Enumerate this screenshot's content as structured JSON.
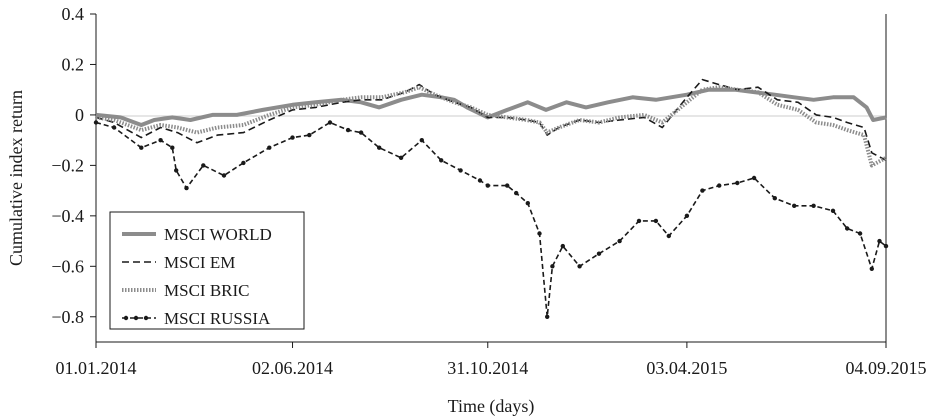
{
  "chart_data": {
    "type": "line",
    "xlabel": "Time (days)",
    "ylabel": "Cumulative index return",
    "ylim": [
      -0.9,
      0.4
    ],
    "xlim": [
      "2014-01-01",
      "2015-09-04"
    ],
    "y_ticks": [
      -0.8,
      -0.6,
      -0.4,
      -0.2,
      0,
      0.2,
      0.4
    ],
    "y_tick_labels": [
      "−0.8",
      "−0.6",
      "−0.4",
      "−0.2",
      "0",
      "0.2",
      "0.4"
    ],
    "x_ticks": [
      "2014-01-01",
      "2014-06-02",
      "2014-10-31",
      "2015-04-03",
      "2015-09-04"
    ],
    "x_tick_labels": [
      "01.01.2014",
      "02.06.2014",
      "31.10.2014",
      "03.04.2015",
      "04.09.2015"
    ],
    "grid": false,
    "legend_position": "bottom-left",
    "series": [
      {
        "name": "MSCI WORLD",
        "style": "solid",
        "color": "#8c8c8c",
        "points": [
          [
            "2014-01-01",
            0.0
          ],
          [
            "2014-01-20",
            -0.01
          ],
          [
            "2014-02-05",
            -0.04
          ],
          [
            "2014-02-15",
            -0.02
          ],
          [
            "2014-03-01",
            -0.01
          ],
          [
            "2014-03-15",
            -0.02
          ],
          [
            "2014-04-01",
            0.0
          ],
          [
            "2014-04-20",
            0.0
          ],
          [
            "2014-05-10",
            0.02
          ],
          [
            "2014-06-02",
            0.04
          ],
          [
            "2014-06-20",
            0.05
          ],
          [
            "2014-07-10",
            0.06
          ],
          [
            "2014-07-25",
            0.05
          ],
          [
            "2014-08-08",
            0.03
          ],
          [
            "2014-08-25",
            0.06
          ],
          [
            "2014-09-10",
            0.08
          ],
          [
            "2014-09-25",
            0.07
          ],
          [
            "2014-10-05",
            0.06
          ],
          [
            "2014-10-15",
            0.03
          ],
          [
            "2014-10-31",
            -0.01
          ],
          [
            "2014-11-15",
            0.02
          ],
          [
            "2014-12-01",
            0.05
          ],
          [
            "2014-12-15",
            0.02
          ],
          [
            "2014-12-31",
            0.05
          ],
          [
            "2015-01-15",
            0.03
          ],
          [
            "2015-02-01",
            0.05
          ],
          [
            "2015-02-20",
            0.07
          ],
          [
            "2015-03-10",
            0.06
          ],
          [
            "2015-04-03",
            0.08
          ],
          [
            "2015-04-20",
            0.1
          ],
          [
            "2015-05-10",
            0.1
          ],
          [
            "2015-05-25",
            0.09
          ],
          [
            "2015-06-10",
            0.08
          ],
          [
            "2015-06-25",
            0.07
          ],
          [
            "2015-07-10",
            0.06
          ],
          [
            "2015-07-25",
            0.07
          ],
          [
            "2015-08-10",
            0.07
          ],
          [
            "2015-08-20",
            0.03
          ],
          [
            "2015-08-25",
            -0.02
          ],
          [
            "2015-09-04",
            -0.01
          ]
        ]
      },
      {
        "name": "MSCI EM",
        "style": "dashed",
        "color": "#1a1a1a",
        "points": [
          [
            "2014-01-01",
            -0.01
          ],
          [
            "2014-01-15",
            -0.03
          ],
          [
            "2014-02-05",
            -0.09
          ],
          [
            "2014-02-20",
            -0.05
          ],
          [
            "2014-03-05",
            -0.07
          ],
          [
            "2014-03-20",
            -0.11
          ],
          [
            "2014-04-05",
            -0.08
          ],
          [
            "2014-04-25",
            -0.07
          ],
          [
            "2014-05-15",
            -0.02
          ],
          [
            "2014-06-02",
            0.02
          ],
          [
            "2014-06-20",
            0.03
          ],
          [
            "2014-07-10",
            0.05
          ],
          [
            "2014-07-25",
            0.06
          ],
          [
            "2014-08-10",
            0.06
          ],
          [
            "2014-08-28",
            0.09
          ],
          [
            "2014-09-08",
            0.12
          ],
          [
            "2014-09-20",
            0.08
          ],
          [
            "2014-10-05",
            0.05
          ],
          [
            "2014-10-18",
            0.03
          ],
          [
            "2014-10-31",
            -0.01
          ],
          [
            "2014-11-15",
            -0.01
          ],
          [
            "2014-11-30",
            -0.02
          ],
          [
            "2014-12-10",
            -0.03
          ],
          [
            "2014-12-16",
            -0.08
          ],
          [
            "2014-12-25",
            -0.05
          ],
          [
            "2015-01-10",
            -0.02
          ],
          [
            "2015-01-25",
            -0.03
          ],
          [
            "2015-02-10",
            -0.02
          ],
          [
            "2015-03-01",
            -0.01
          ],
          [
            "2015-03-15",
            -0.05
          ],
          [
            "2015-04-03",
            0.07
          ],
          [
            "2015-04-15",
            0.14
          ],
          [
            "2015-04-28",
            0.12
          ],
          [
            "2015-05-12",
            0.1
          ],
          [
            "2015-05-28",
            0.11
          ],
          [
            "2015-06-12",
            0.06
          ],
          [
            "2015-06-28",
            0.05
          ],
          [
            "2015-07-12",
            0.0
          ],
          [
            "2015-07-25",
            -0.01
          ],
          [
            "2015-08-05",
            -0.03
          ],
          [
            "2015-08-18",
            -0.05
          ],
          [
            "2015-08-24",
            -0.15
          ],
          [
            "2015-09-04",
            -0.18
          ]
        ]
      },
      {
        "name": "MSCI BRIC",
        "style": "dotted",
        "color": "#8c8c8c",
        "points": [
          [
            "2014-01-01",
            -0.01
          ],
          [
            "2014-01-15",
            -0.02
          ],
          [
            "2014-02-05",
            -0.06
          ],
          [
            "2014-02-20",
            -0.04
          ],
          [
            "2014-03-05",
            -0.05
          ],
          [
            "2014-03-20",
            -0.07
          ],
          [
            "2014-04-05",
            -0.05
          ],
          [
            "2014-04-25",
            -0.04
          ],
          [
            "2014-05-15",
            0.0
          ],
          [
            "2014-06-02",
            0.03
          ],
          [
            "2014-06-20",
            0.04
          ],
          [
            "2014-07-10",
            0.06
          ],
          [
            "2014-07-25",
            0.07
          ],
          [
            "2014-08-10",
            0.07
          ],
          [
            "2014-08-28",
            0.09
          ],
          [
            "2014-09-08",
            0.11
          ],
          [
            "2014-09-20",
            0.08
          ],
          [
            "2014-10-05",
            0.05
          ],
          [
            "2014-10-18",
            0.03
          ],
          [
            "2014-10-31",
            0.0
          ],
          [
            "2014-11-15",
            -0.01
          ],
          [
            "2014-11-30",
            -0.02
          ],
          [
            "2014-12-10",
            -0.03
          ],
          [
            "2014-12-16",
            -0.07
          ],
          [
            "2014-12-25",
            -0.05
          ],
          [
            "2015-01-10",
            -0.02
          ],
          [
            "2015-01-25",
            -0.03
          ],
          [
            "2015-02-10",
            -0.01
          ],
          [
            "2015-03-01",
            0.0
          ],
          [
            "2015-03-15",
            -0.03
          ],
          [
            "2015-04-03",
            0.05
          ],
          [
            "2015-04-15",
            0.1
          ],
          [
            "2015-04-28",
            0.11
          ],
          [
            "2015-05-12",
            0.1
          ],
          [
            "2015-05-28",
            0.09
          ],
          [
            "2015-06-12",
            0.04
          ],
          [
            "2015-06-28",
            0.02
          ],
          [
            "2015-07-12",
            -0.03
          ],
          [
            "2015-07-25",
            -0.04
          ],
          [
            "2015-08-05",
            -0.06
          ],
          [
            "2015-08-18",
            -0.08
          ],
          [
            "2015-08-24",
            -0.2
          ],
          [
            "2015-09-04",
            -0.17
          ]
        ]
      },
      {
        "name": "MSCI RUSSIA",
        "style": "dash-dot",
        "color": "#1a1a1a",
        "points": [
          [
            "2014-01-01",
            -0.03
          ],
          [
            "2014-01-15",
            -0.05
          ],
          [
            "2014-02-05",
            -0.13
          ],
          [
            "2014-02-20",
            -0.1
          ],
          [
            "2014-03-01",
            -0.13
          ],
          [
            "2014-03-04",
            -0.22
          ],
          [
            "2014-03-12",
            -0.29
          ],
          [
            "2014-03-25",
            -0.2
          ],
          [
            "2014-04-10",
            -0.24
          ],
          [
            "2014-04-25",
            -0.19
          ],
          [
            "2014-05-15",
            -0.13
          ],
          [
            "2014-06-02",
            -0.09
          ],
          [
            "2014-06-15",
            -0.08
          ],
          [
            "2014-07-01",
            -0.03
          ],
          [
            "2014-07-15",
            -0.06
          ],
          [
            "2014-07-25",
            -0.07
          ],
          [
            "2014-08-08",
            -0.13
          ],
          [
            "2014-08-25",
            -0.17
          ],
          [
            "2014-09-10",
            -0.1
          ],
          [
            "2014-09-25",
            -0.18
          ],
          [
            "2014-10-10",
            -0.22
          ],
          [
            "2014-10-25",
            -0.26
          ],
          [
            "2014-10-31",
            -0.28
          ],
          [
            "2014-11-15",
            -0.28
          ],
          [
            "2014-11-22",
            -0.31
          ],
          [
            "2014-12-01",
            -0.35
          ],
          [
            "2014-12-10",
            -0.47
          ],
          [
            "2014-12-16",
            -0.8
          ],
          [
            "2014-12-20",
            -0.6
          ],
          [
            "2014-12-28",
            -0.52
          ],
          [
            "2015-01-10",
            -0.6
          ],
          [
            "2015-01-25",
            -0.55
          ],
          [
            "2015-02-10",
            -0.5
          ],
          [
            "2015-02-25",
            -0.42
          ],
          [
            "2015-03-10",
            -0.42
          ],
          [
            "2015-03-20",
            -0.48
          ],
          [
            "2015-04-03",
            -0.4
          ],
          [
            "2015-04-15",
            -0.3
          ],
          [
            "2015-04-28",
            -0.28
          ],
          [
            "2015-05-12",
            -0.27
          ],
          [
            "2015-05-25",
            -0.25
          ],
          [
            "2015-06-10",
            -0.33
          ],
          [
            "2015-06-25",
            -0.36
          ],
          [
            "2015-07-10",
            -0.36
          ],
          [
            "2015-07-25",
            -0.38
          ],
          [
            "2015-08-05",
            -0.45
          ],
          [
            "2015-08-15",
            -0.47
          ],
          [
            "2015-08-24",
            -0.61
          ],
          [
            "2015-08-30",
            -0.5
          ],
          [
            "2015-09-04",
            -0.52
          ]
        ]
      }
    ]
  }
}
